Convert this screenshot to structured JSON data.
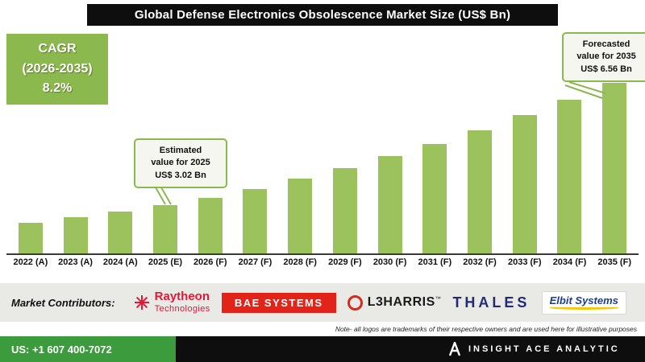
{
  "title": "Global Defense Electronics Obsolescence Market Size (US$ Bn)",
  "cagr": {
    "label": "CAGR",
    "range": "(2026-2035)",
    "value": "8.2%"
  },
  "callouts": {
    "estimated": {
      "text": "Estimated\nvalue for 2025\nUS$ 3.02 Bn"
    },
    "forecast": {
      "text": "Forecasted\nvalue for 2035\nUS$ 6.56 Bn"
    }
  },
  "chart_data": {
    "type": "bar",
    "title": "Global Defense Electronics Obsolescence Market Size (US$ Bn)",
    "unit": "US$ Bn",
    "categories": [
      "2022 (A)",
      "2023 (A)",
      "2024 (A)",
      "2025 (E)",
      "2026 (F)",
      "2027 (F)",
      "2028 (F)",
      "2029 (F)",
      "2030 (F)",
      "2031 (F)",
      "2032 (F)",
      "2033 (F)",
      "2034 (F)",
      "2035 (F)"
    ],
    "values": [
      2.5,
      2.67,
      2.84,
      3.02,
      3.23,
      3.49,
      3.78,
      4.09,
      4.43,
      4.79,
      5.18,
      5.61,
      6.07,
      6.56
    ],
    "bar_color": "#9CC25E",
    "accent_color": "#8CB94E",
    "xlabel": "",
    "ylabel": "",
    "grid": false,
    "legend": false,
    "cagr": {
      "period": "2026-2035",
      "value": "8.2%"
    },
    "annotations": [
      {
        "category": "2025 (E)",
        "text": "Estimated value for 2025 US$ 3.02 Bn"
      },
      {
        "category": "2035 (F)",
        "text": "Forecasted value for 2035 US$ 6.56 Bn"
      }
    ]
  },
  "contributors": {
    "label": "Market Contributors:",
    "logos": [
      {
        "name": "Raytheon Technologies",
        "line1": "Raytheon",
        "line2": "Technologies",
        "color": "#E31837"
      },
      {
        "name": "BAE Systems",
        "text": "BAE SYSTEMS",
        "color": "#E2231A"
      },
      {
        "name": "L3Harris",
        "text": "L3HARRIS",
        "tm": "™",
        "color": "#DA291C"
      },
      {
        "name": "Thales",
        "text": "THALES",
        "color": "#242A75"
      },
      {
        "name": "Elbit Systems",
        "text": "Elbit Systems",
        "color": "#1B3E94",
        "swoosh_color": "#F7C608"
      }
    ]
  },
  "note": "Note- all logos are trademarks of their respective owners and are used here for illustrative purposes",
  "footer": {
    "phone": "US: +1 607 400-7072",
    "brand": "INSIGHT ACE ANALYTIC"
  },
  "colors": {
    "bar_green": "#9CC25E",
    "accent_green": "#8CB94E",
    "footer_green": "#3C9B3C",
    "bar_black": "#0e0e0e"
  }
}
